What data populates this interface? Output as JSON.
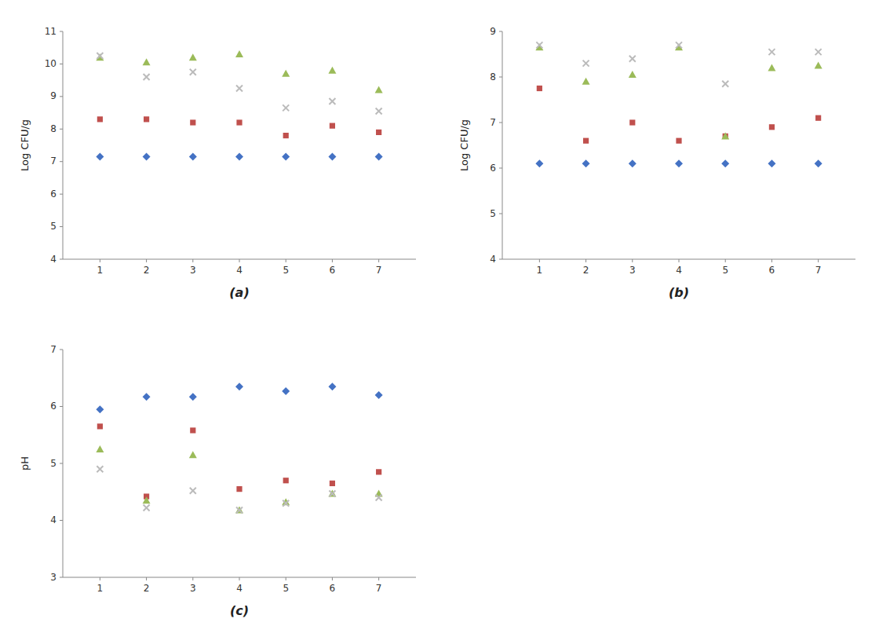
{
  "chart_data": [
    {
      "type": "scatter",
      "xlabel": "(a)",
      "ylabel": "Log CFU/g",
      "x": [
        1,
        2,
        3,
        4,
        5,
        6,
        7
      ],
      "xlim": [
        0.2,
        7.8
      ],
      "xticks": [
        1,
        2,
        3,
        4,
        5,
        6,
        7
      ],
      "ylim": [
        4,
        11
      ],
      "yticks": [
        4,
        5,
        6,
        7,
        8,
        9,
        10,
        11
      ],
      "grid": false,
      "series": [
        {
          "marker": "diamond",
          "color": "#4472C4",
          "values": [
            7.15,
            7.15,
            7.15,
            7.15,
            7.15,
            7.15,
            7.15
          ]
        },
        {
          "marker": "square",
          "color": "#C0504D",
          "values": [
            8.3,
            8.3,
            8.2,
            8.2,
            7.8,
            8.1,
            7.9
          ]
        },
        {
          "marker": "triangle",
          "color": "#9BBB59",
          "values": [
            10.2,
            10.05,
            10.2,
            10.3,
            9.7,
            9.8,
            9.2
          ]
        },
        {
          "marker": "cross",
          "color": "#BBBBBB",
          "values": [
            10.25,
            9.6,
            9.75,
            9.25,
            8.65,
            8.85,
            8.55
          ]
        }
      ]
    },
    {
      "type": "scatter",
      "xlabel": "(b)",
      "ylabel": "Log CFU/g",
      "x": [
        1,
        2,
        3,
        4,
        5,
        6,
        7
      ],
      "xlim": [
        0.2,
        7.8
      ],
      "xticks": [
        1,
        2,
        3,
        4,
        5,
        6,
        7
      ],
      "ylim": [
        4,
        9
      ],
      "yticks": [
        4,
        5,
        6,
        7,
        8,
        9
      ],
      "grid": false,
      "series": [
        {
          "marker": "diamond",
          "color": "#4472C4",
          "values": [
            6.1,
            6.1,
            6.1,
            6.1,
            6.1,
            6.1,
            6.1
          ]
        },
        {
          "marker": "square",
          "color": "#C0504D",
          "values": [
            7.75,
            6.6,
            7.0,
            6.6,
            6.7,
            6.9,
            7.1
          ]
        },
        {
          "marker": "triangle",
          "color": "#9BBB59",
          "values": [
            8.65,
            7.9,
            8.05,
            8.65,
            6.7,
            8.2,
            8.25
          ]
        },
        {
          "marker": "cross",
          "color": "#BBBBBB",
          "values": [
            8.7,
            8.3,
            8.4,
            8.7,
            7.85,
            8.55,
            8.55
          ]
        }
      ]
    },
    {
      "type": "scatter",
      "xlabel": "(c)",
      "ylabel": "pH",
      "x": [
        1,
        2,
        3,
        4,
        5,
        6,
        7
      ],
      "xlim": [
        0.2,
        7.8
      ],
      "xticks": [
        1,
        2,
        3,
        4,
        5,
        6,
        7
      ],
      "ylim": [
        3,
        7
      ],
      "yticks": [
        3,
        4,
        5,
        6,
        7
      ],
      "grid": false,
      "series": [
        {
          "marker": "diamond",
          "color": "#4472C4",
          "values": [
            5.95,
            6.17,
            6.17,
            6.35,
            6.27,
            6.35,
            6.2
          ]
        },
        {
          "marker": "square",
          "color": "#C0504D",
          "values": [
            5.65,
            4.42,
            5.58,
            4.55,
            4.7,
            4.65,
            4.85
          ]
        },
        {
          "marker": "triangle",
          "color": "#9BBB59",
          "values": [
            5.25,
            4.35,
            5.15,
            4.18,
            4.32,
            4.47,
            4.47
          ]
        },
        {
          "marker": "cross",
          "color": "#BBBBBB",
          "values": [
            4.9,
            4.22,
            4.52,
            4.18,
            4.3,
            4.47,
            4.4
          ]
        }
      ]
    }
  ]
}
